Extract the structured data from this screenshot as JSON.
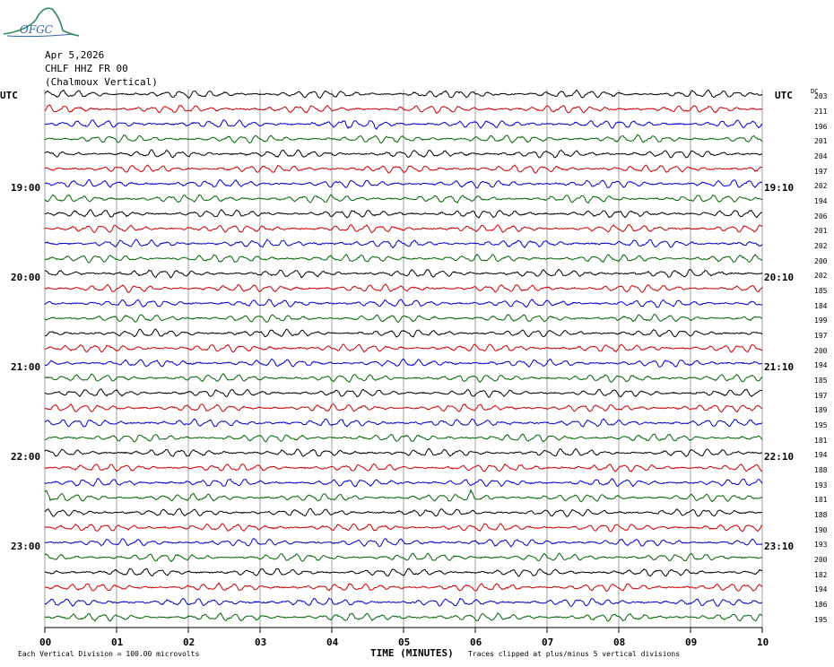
{
  "logo": {
    "text": "OFGC"
  },
  "header": {
    "date": "Apr 5,2026",
    "station": "CHLF HHZ FR 00",
    "location": "(Chalmoux Vertical)"
  },
  "utc_left": "UTC",
  "utc_right": "UTC",
  "dc_label": "DC",
  "left_times": [
    "19:00",
    "20:00",
    "21:00",
    "22:00",
    "23:00"
  ],
  "right_times": [
    "19:10",
    "20:10",
    "21:10",
    "22:10",
    "23:10"
  ],
  "dc_values": [
    "203",
    "211",
    "196",
    "201",
    "204",
    "197",
    "202",
    "194",
    "206",
    "201",
    "202",
    "200",
    "202",
    "185",
    "184",
    "199",
    "197",
    "200",
    "194",
    "185",
    "197",
    "189",
    "195",
    "181",
    "194",
    "188",
    "193",
    "181",
    "188",
    "190",
    "193",
    "200",
    "182",
    "194",
    "186",
    "195"
  ],
  "x_ticks": [
    "00",
    "01",
    "02",
    "03",
    "04",
    "05",
    "06",
    "07",
    "08",
    "09",
    "10"
  ],
  "x_label": "TIME (MINUTES)",
  "footer": {
    "left": "Each Vertical Division =  100.00 microvolts",
    "right": "Traces clipped at plus/minus 5 vertical divisions"
  },
  "trace_colors": [
    "#000000",
    "#cc0000",
    "#0000cc",
    "#006600"
  ]
}
